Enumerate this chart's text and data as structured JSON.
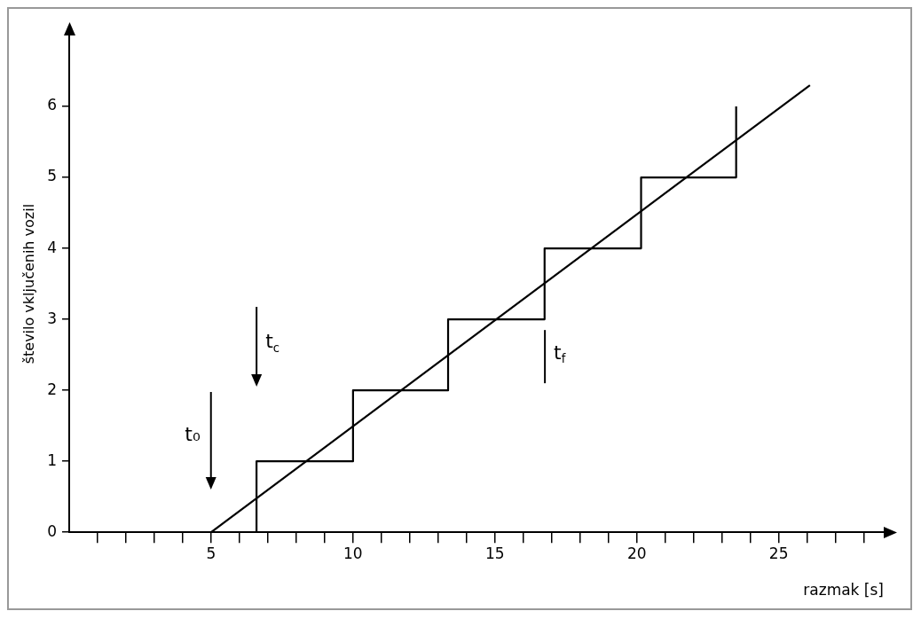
{
  "chart_data": {
    "type": "line",
    "xlabel": "razmak [s]",
    "ylabel": "število vključenih vozil",
    "xlim": [
      0,
      28.7
    ],
    "ylim": [
      0,
      7
    ],
    "xticks": [
      {
        "value": 1,
        "label": null
      },
      {
        "value": 2,
        "label": null
      },
      {
        "value": 3,
        "label": null
      },
      {
        "value": 4,
        "label": null
      },
      5,
      {
        "value": 6,
        "label": null
      },
      {
        "value": 7,
        "label": null
      },
      {
        "value": 8,
        "label": null
      },
      {
        "value": 9,
        "label": null
      },
      10,
      {
        "value": 11,
        "label": null
      },
      {
        "value": 12,
        "label": null
      },
      {
        "value": 13,
        "label": null
      },
      {
        "value": 14,
        "label": null
      },
      15,
      {
        "value": 16,
        "label": null
      },
      {
        "value": 17,
        "label": null
      },
      {
        "value": 18,
        "label": null
      },
      {
        "value": 19,
        "label": null
      },
      20,
      {
        "value": 21,
        "label": null
      },
      {
        "value": 22,
        "label": null
      },
      {
        "value": 23,
        "label": null
      },
      {
        "value": 24,
        "label": null
      },
      25,
      {
        "value": 26,
        "label": null
      },
      {
        "value": 27,
        "label": null
      },
      {
        "value": 28,
        "label": null
      }
    ],
    "yticks": [
      0,
      1,
      2,
      3,
      4,
      5,
      6
    ],
    "marker": "none",
    "line_style": "solid",
    "legend": false,
    "series": [
      {
        "color": "#000000",
        "x": [
          6.6,
          6.6,
          10,
          10,
          13.35,
          13.35,
          16.75,
          16.75,
          20.15,
          20.15,
          23.5,
          23.5
        ],
        "values": [
          0,
          1,
          1,
          2,
          2,
          3,
          3,
          4,
          4,
          5,
          5,
          6
        ]
      },
      {
        "color": "#000000",
        "x": [
          5,
          26.1
        ],
        "values": [
          0,
          6.3
        ]
      }
    ],
    "annotations": [
      "t₀",
      "t$_{c}$",
      "t$_{f}$"
    ]
  }
}
